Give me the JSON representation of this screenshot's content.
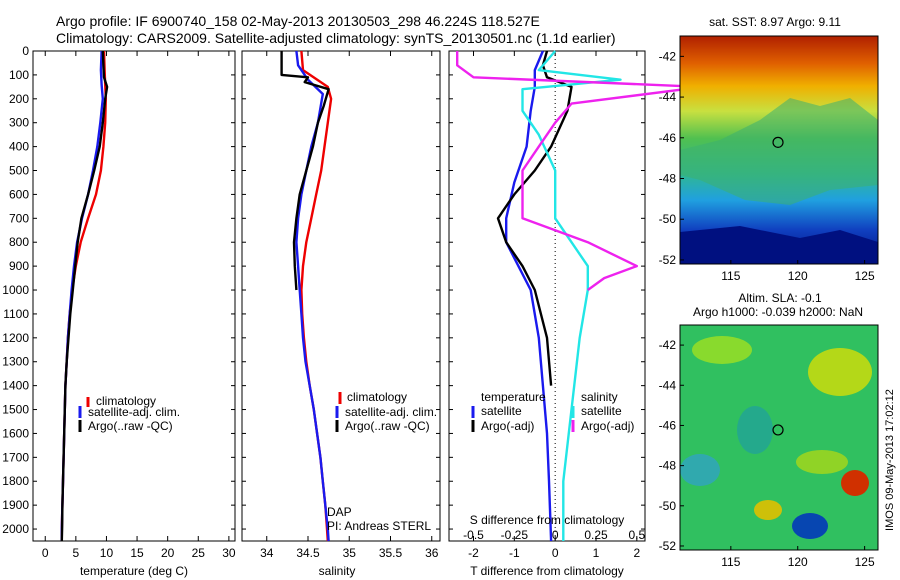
{
  "header": {
    "line1": "Argo profile: IF 6900740_158 02-May-2013 20130503_298 46.224S 118.527E",
    "line2": "Climatology: CARS2009. Satellite-adjusted climatology: synTS_20130501.nc (1.1d earlier)"
  },
  "footer": {
    "credit_dap": "DAP",
    "credit_pi": "PI: Andreas STERL",
    "side_stamp": "IMOS 09-May-2013 17:02:12"
  },
  "colors": {
    "climatology": "#ee0000",
    "satellite": "#1a1aee",
    "argo": "#000000",
    "salinity_satellite": "#22e6e6",
    "salinity_argo": "#ee22ee"
  },
  "chart_data": [
    {
      "type": "line",
      "panel": "temperature",
      "xlabel": "temperature (deg C)",
      "xlim": [
        -2,
        31
      ],
      "xticks": [
        0,
        5,
        10,
        15,
        20,
        25,
        30
      ],
      "ylim": [
        0,
        2050
      ],
      "yticks": [
        0,
        100,
        200,
        300,
        400,
        500,
        600,
        700,
        800,
        900,
        1000,
        1100,
        1200,
        1300,
        1400,
        1500,
        1600,
        1700,
        1800,
        1900,
        2000
      ],
      "y_reversed": true,
      "legend": {
        "position": "lower-middle",
        "entries": [
          "climatology",
          "satellite-adj. clim.",
          "Argo(..raw -QC)"
        ]
      },
      "series": [
        {
          "name": "climatology",
          "color": "#ee0000",
          "points": [
            [
              9.6,
              0
            ],
            [
              9.7,
              80
            ],
            [
              9.8,
              140
            ],
            [
              9.9,
              200
            ],
            [
              9.8,
              300
            ],
            [
              9.5,
              400
            ],
            [
              9.1,
              500
            ],
            [
              8.3,
              600
            ],
            [
              7.0,
              700
            ],
            [
              5.8,
              800
            ],
            [
              5.0,
              900
            ],
            [
              4.4,
              1000
            ],
            [
              4.0,
              1100
            ],
            [
              3.7,
              1200
            ],
            [
              3.5,
              1300
            ],
            [
              3.3,
              1400
            ],
            [
              3.2,
              1500
            ],
            [
              3.1,
              1600
            ],
            [
              3.0,
              1700
            ],
            [
              2.9,
              1800
            ],
            [
              2.8,
              1900
            ],
            [
              2.7,
              2000
            ],
            [
              2.7,
              2050
            ]
          ]
        },
        {
          "name": "satellite-adj. clim.",
          "color": "#1a1aee",
          "points": [
            [
              9.2,
              0
            ],
            [
              9.1,
              80
            ],
            [
              9.2,
              140
            ],
            [
              9.4,
              200
            ],
            [
              9.0,
              300
            ],
            [
              8.5,
              400
            ],
            [
              7.8,
              500
            ],
            [
              7.0,
              600
            ],
            [
              6.0,
              700
            ],
            [
              5.2,
              800
            ],
            [
              4.7,
              900
            ],
            [
              4.3,
              1000
            ],
            [
              4.0,
              1100
            ],
            [
              3.7,
              1200
            ],
            [
              3.5,
              1300
            ],
            [
              3.3,
              1400
            ],
            [
              3.2,
              1500
            ],
            [
              3.1,
              1600
            ],
            [
              3.0,
              1700
            ],
            [
              2.9,
              1800
            ],
            [
              2.8,
              1900
            ],
            [
              2.7,
              2000
            ],
            [
              2.7,
              2050
            ]
          ]
        },
        {
          "name": "Argo(..raw -QC)",
          "color": "#000000",
          "points": [
            [
              9.4,
              0
            ],
            [
              9.5,
              60
            ],
            [
              9.6,
              110
            ],
            [
              10.1,
              150
            ],
            [
              9.8,
              200
            ],
            [
              9.4,
              300
            ],
            [
              8.9,
              400
            ],
            [
              8.0,
              500
            ],
            [
              7.0,
              600
            ],
            [
              5.9,
              700
            ],
            [
              5.3,
              800
            ],
            [
              4.9,
              900
            ],
            [
              4.5,
              1000
            ],
            [
              4.1,
              1100
            ],
            [
              3.8,
              1200
            ],
            [
              3.5,
              1300
            ],
            [
              3.3,
              1400
            ],
            [
              3.2,
              1500
            ],
            [
              3.1,
              1600
            ],
            [
              3.0,
              1700
            ],
            [
              2.9,
              1800
            ],
            [
              2.8,
              1900
            ],
            [
              2.75,
              2000
            ],
            [
              2.7,
              2050
            ]
          ]
        }
      ]
    },
    {
      "type": "line",
      "panel": "salinity",
      "xlabel": "salinity",
      "xlim": [
        33.7,
        36.1
      ],
      "xticks": [
        34,
        34.5,
        35,
        35.5,
        36
      ],
      "ylim": [
        0,
        2050
      ],
      "y_reversed": true,
      "legend": {
        "position": "lower-middle",
        "entries": [
          "climatology",
          "satellite-adj. clim.",
          "Argo(..raw -QC)"
        ]
      },
      "series": [
        {
          "name": "climatology",
          "color": "#ee0000",
          "points": [
            [
              34.42,
              0
            ],
            [
              34.44,
              80
            ],
            [
              34.74,
              150
            ],
            [
              34.78,
              200
            ],
            [
              34.74,
              300
            ],
            [
              34.7,
              400
            ],
            [
              34.66,
              500
            ],
            [
              34.6,
              600
            ],
            [
              34.54,
              700
            ],
            [
              34.48,
              800
            ],
            [
              34.44,
              900
            ],
            [
              34.42,
              1000
            ],
            [
              34.43,
              1100
            ],
            [
              34.45,
              1200
            ],
            [
              34.48,
              1300
            ],
            [
              34.52,
              1400
            ],
            [
              34.57,
              1500
            ],
            [
              34.61,
              1600
            ],
            [
              34.65,
              1700
            ],
            [
              34.68,
              1800
            ],
            [
              34.71,
              1900
            ],
            [
              34.73,
              2000
            ],
            [
              34.74,
              2050
            ]
          ]
        },
        {
          "name": "satellite-adj. clim.",
          "color": "#1a1aee",
          "points": [
            [
              34.36,
              0
            ],
            [
              34.38,
              60
            ],
            [
              34.5,
              120
            ],
            [
              34.68,
              180
            ],
            [
              34.62,
              300
            ],
            [
              34.54,
              400
            ],
            [
              34.48,
              500
            ],
            [
              34.42,
              600
            ],
            [
              34.38,
              700
            ],
            [
              34.36,
              800
            ],
            [
              34.38,
              900
            ],
            [
              34.4,
              1000
            ],
            [
              34.42,
              1100
            ],
            [
              34.44,
              1200
            ],
            [
              34.47,
              1300
            ],
            [
              34.52,
              1400
            ],
            [
              34.57,
              1500
            ],
            [
              34.61,
              1600
            ],
            [
              34.65,
              1700
            ],
            [
              34.68,
              1800
            ],
            [
              34.71,
              1900
            ],
            [
              34.74,
              2000
            ],
            [
              34.75,
              2050
            ]
          ]
        },
        {
          "name": "Argo(..raw -QC)",
          "color": "#000000",
          "points": [
            [
              34.18,
              0
            ],
            [
              34.18,
              100
            ],
            [
              34.5,
              110
            ],
            [
              34.46,
              130
            ],
            [
              34.75,
              160
            ],
            [
              34.69,
              230
            ],
            [
              34.62,
              300
            ],
            [
              34.56,
              400
            ],
            [
              34.48,
              500
            ],
            [
              34.4,
              600
            ],
            [
              34.36,
              700
            ],
            [
              34.33,
              800
            ],
            [
              34.34,
              900
            ],
            [
              34.36,
              1000
            ]
          ]
        }
      ]
    },
    {
      "type": "line",
      "panel": "differences",
      "xlabel": "T difference from climatology",
      "xlim": [
        -2.6,
        2.2
      ],
      "xticks": [
        -2,
        -1,
        0,
        1,
        2
      ],
      "secondary_axis": {
        "label": "S difference from climatology",
        "ticks": [
          -0.5,
          -0.25,
          0,
          0.25,
          0.5
        ]
      },
      "ylim": [
        0,
        2050
      ],
      "y_reversed": true,
      "legend": {
        "position": "lower-middle",
        "temperature_title": "temperature",
        "salinity_title": "salinity",
        "entries": [
          "satellite",
          "Argo(-adj)",
          "satellite",
          "Argo(-adj)"
        ]
      },
      "series": [
        {
          "name": "temperature satellite",
          "color": "#1a1aee",
          "points": [
            [
              -0.3,
              0
            ],
            [
              -0.5,
              80
            ],
            [
              -0.5,
              150
            ],
            [
              -0.6,
              250
            ],
            [
              -0.7,
              400
            ],
            [
              -1.0,
              550
            ],
            [
              -1.2,
              700
            ],
            [
              -1.2,
              800
            ],
            [
              -0.9,
              900
            ],
            [
              -0.6,
              1000
            ],
            [
              -0.4,
              1200
            ],
            [
              -0.3,
              1400
            ],
            [
              -0.2,
              1600
            ],
            [
              -0.15,
              1800
            ],
            [
              -0.1,
              2050
            ]
          ]
        },
        {
          "name": "temperature Argo(-adj)",
          "color": "#000000",
          "points": [
            [
              -0.2,
              0
            ],
            [
              -0.3,
              60
            ],
            [
              -0.2,
              110
            ],
            [
              0.4,
              150
            ],
            [
              0.3,
              250
            ],
            [
              -0.1,
              400
            ],
            [
              -0.5,
              500
            ],
            [
              -1.0,
              600
            ],
            [
              -1.4,
              700
            ],
            [
              -1.2,
              800
            ],
            [
              -0.8,
              900
            ],
            [
              -0.5,
              1000
            ],
            [
              -0.2,
              1200
            ],
            [
              -0.1,
              1400
            ]
          ]
        },
        {
          "name": "salinity satellite",
          "color": "#22e6e6",
          "points": [
            [
              0.0,
              0
            ],
            [
              -0.1,
              80
            ],
            [
              0.4,
              120
            ],
            [
              -0.2,
              160
            ],
            [
              -0.2,
              250
            ],
            [
              -0.1,
              350
            ],
            [
              0.0,
              500
            ],
            [
              0.0,
              700
            ],
            [
              0.1,
              800
            ],
            [
              0.2,
              900
            ],
            [
              0.2,
              1000
            ],
            [
              0.15,
              1200
            ],
            [
              0.1,
              1500
            ],
            [
              0.05,
              1800
            ],
            [
              0.05,
              2050
            ]
          ]
        },
        {
          "name": "salinity Argo(-adj)",
          "color": "#ee22ee",
          "points": [
            [
              -0.6,
              0
            ],
            [
              -0.6,
              60
            ],
            [
              -0.5,
              110
            ],
            [
              0.9,
              150
            ],
            [
              0.1,
              220
            ],
            [
              0.0,
              300
            ],
            [
              -0.1,
              400
            ],
            [
              -0.2,
              500
            ],
            [
              -0.2,
              600
            ],
            [
              -0.2,
              700
            ],
            [
              0.2,
              800
            ],
            [
              0.5,
              900
            ],
            [
              0.3,
              950
            ],
            [
              0.2,
              1000
            ]
          ]
        }
      ]
    },
    {
      "type": "heatmap",
      "panel": "sst_map",
      "title": "sat. SST: 8.97 Argo: 9.11",
      "xticks": [
        115,
        120,
        125
      ],
      "yticks": [
        -42,
        -44,
        -46,
        -48,
        -50,
        -52
      ],
      "marker": {
        "lon": 118.527,
        "lat": -46.224
      }
    },
    {
      "type": "heatmap",
      "panel": "sla_map",
      "title_line1": "Altim. SLA: -0.1",
      "title_line2": "Argo h1000: -0.039 h2000: NaN",
      "xticks": [
        115,
        120,
        125
      ],
      "yticks": [
        -42,
        -44,
        -46,
        -48,
        -50,
        -52
      ],
      "marker": {
        "lon": 118.527,
        "lat": -46.224
      }
    }
  ]
}
